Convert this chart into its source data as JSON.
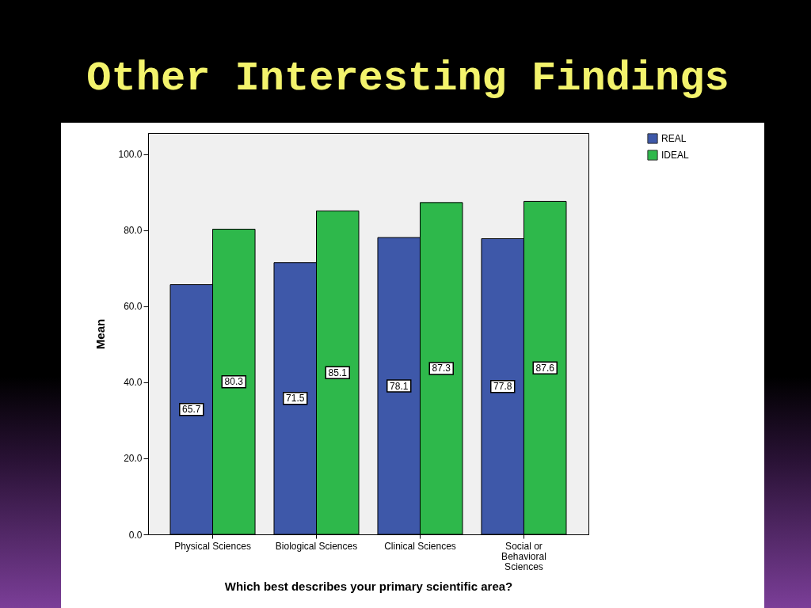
{
  "chart_data": {
    "type": "bar",
    "title": "Other Interesting Findings",
    "xlabel": "Which best describes your primary scientific area?",
    "ylabel": "Mean",
    "categories": [
      "Physical Sciences",
      "Biological Sciences",
      "Clinical Sciences",
      "Social or Behavioral Sciences"
    ],
    "series": [
      {
        "name": "REAL",
        "color": "#3e58a9",
        "values": [
          65.7,
          71.5,
          78.1,
          77.8
        ]
      },
      {
        "name": "IDEAL",
        "color": "#2eb84b",
        "values": [
          80.3,
          85.1,
          87.3,
          87.6
        ]
      }
    ],
    "ylim": [
      0,
      105.6
    ],
    "yticks": [
      {
        "value": 0,
        "label": "0.0"
      },
      {
        "value": 20,
        "label": "20.0"
      },
      {
        "value": 40,
        "label": "40.0"
      },
      {
        "value": 60,
        "label": "60.0"
      },
      {
        "value": 80,
        "label": "80.0"
      },
      {
        "value": 100,
        "label": "100.0"
      }
    ],
    "data_labels": true,
    "legend": "top right"
  }
}
